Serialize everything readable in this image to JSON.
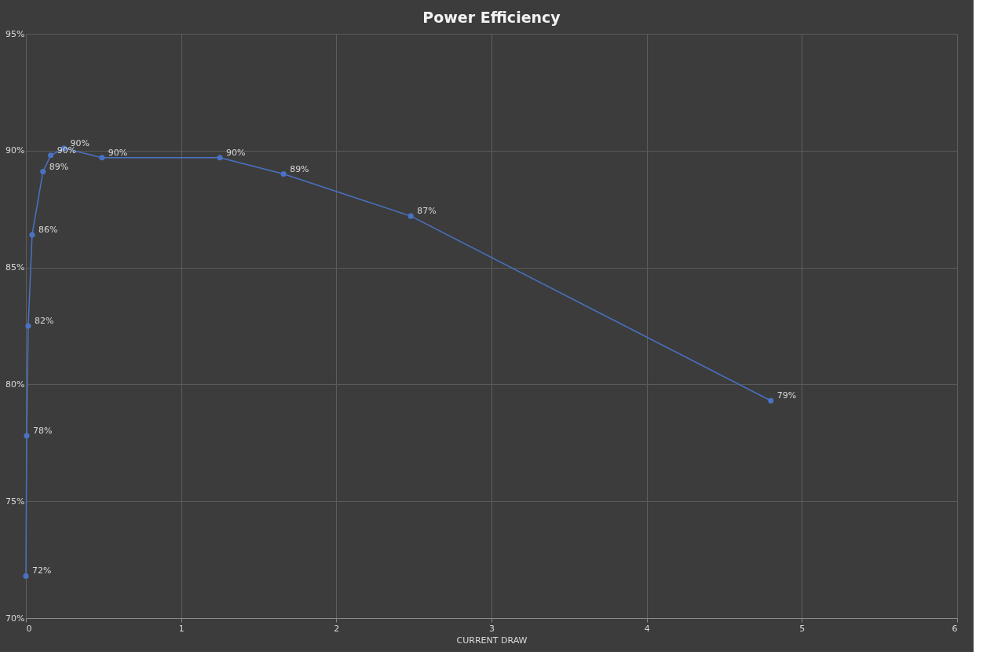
{
  "chart_data": {
    "type": "line",
    "title": "Power Efficiency",
    "xlabel": "CURRENT DRAW",
    "x": [
      0.0,
      0.005,
      0.015,
      0.04,
      0.11,
      0.16,
      0.245,
      0.49,
      1.25,
      1.66,
      2.48,
      4.8
    ],
    "series": [
      {
        "color": "#4a72c4",
        "values": [
          71.8,
          77.8,
          82.5,
          86.4,
          89.1,
          89.8,
          90.1,
          89.7,
          89.7,
          89.0,
          87.2,
          79.3
        ],
        "value_labels": [
          "72%",
          "78%",
          "82%",
          "86%",
          "89%",
          "90%",
          "90%",
          "90%",
          "90%",
          "89%",
          "87%",
          "79%"
        ]
      }
    ],
    "xlim": [
      0,
      6
    ],
    "xticks": [
      0,
      1,
      2,
      3,
      4,
      5,
      6
    ],
    "ylim": [
      70,
      95
    ],
    "yticks": [
      {
        "value": 70,
        "label": "70%"
      },
      {
        "value": 75,
        "label": "75%"
      },
      {
        "value": 80,
        "label": "80%"
      },
      {
        "value": 85,
        "label": "85%"
      },
      {
        "value": 90,
        "label": "90%"
      },
      {
        "value": 95,
        "label": "95%"
      }
    ],
    "grid": true,
    "marker": "circle",
    "line_style": "solid"
  }
}
